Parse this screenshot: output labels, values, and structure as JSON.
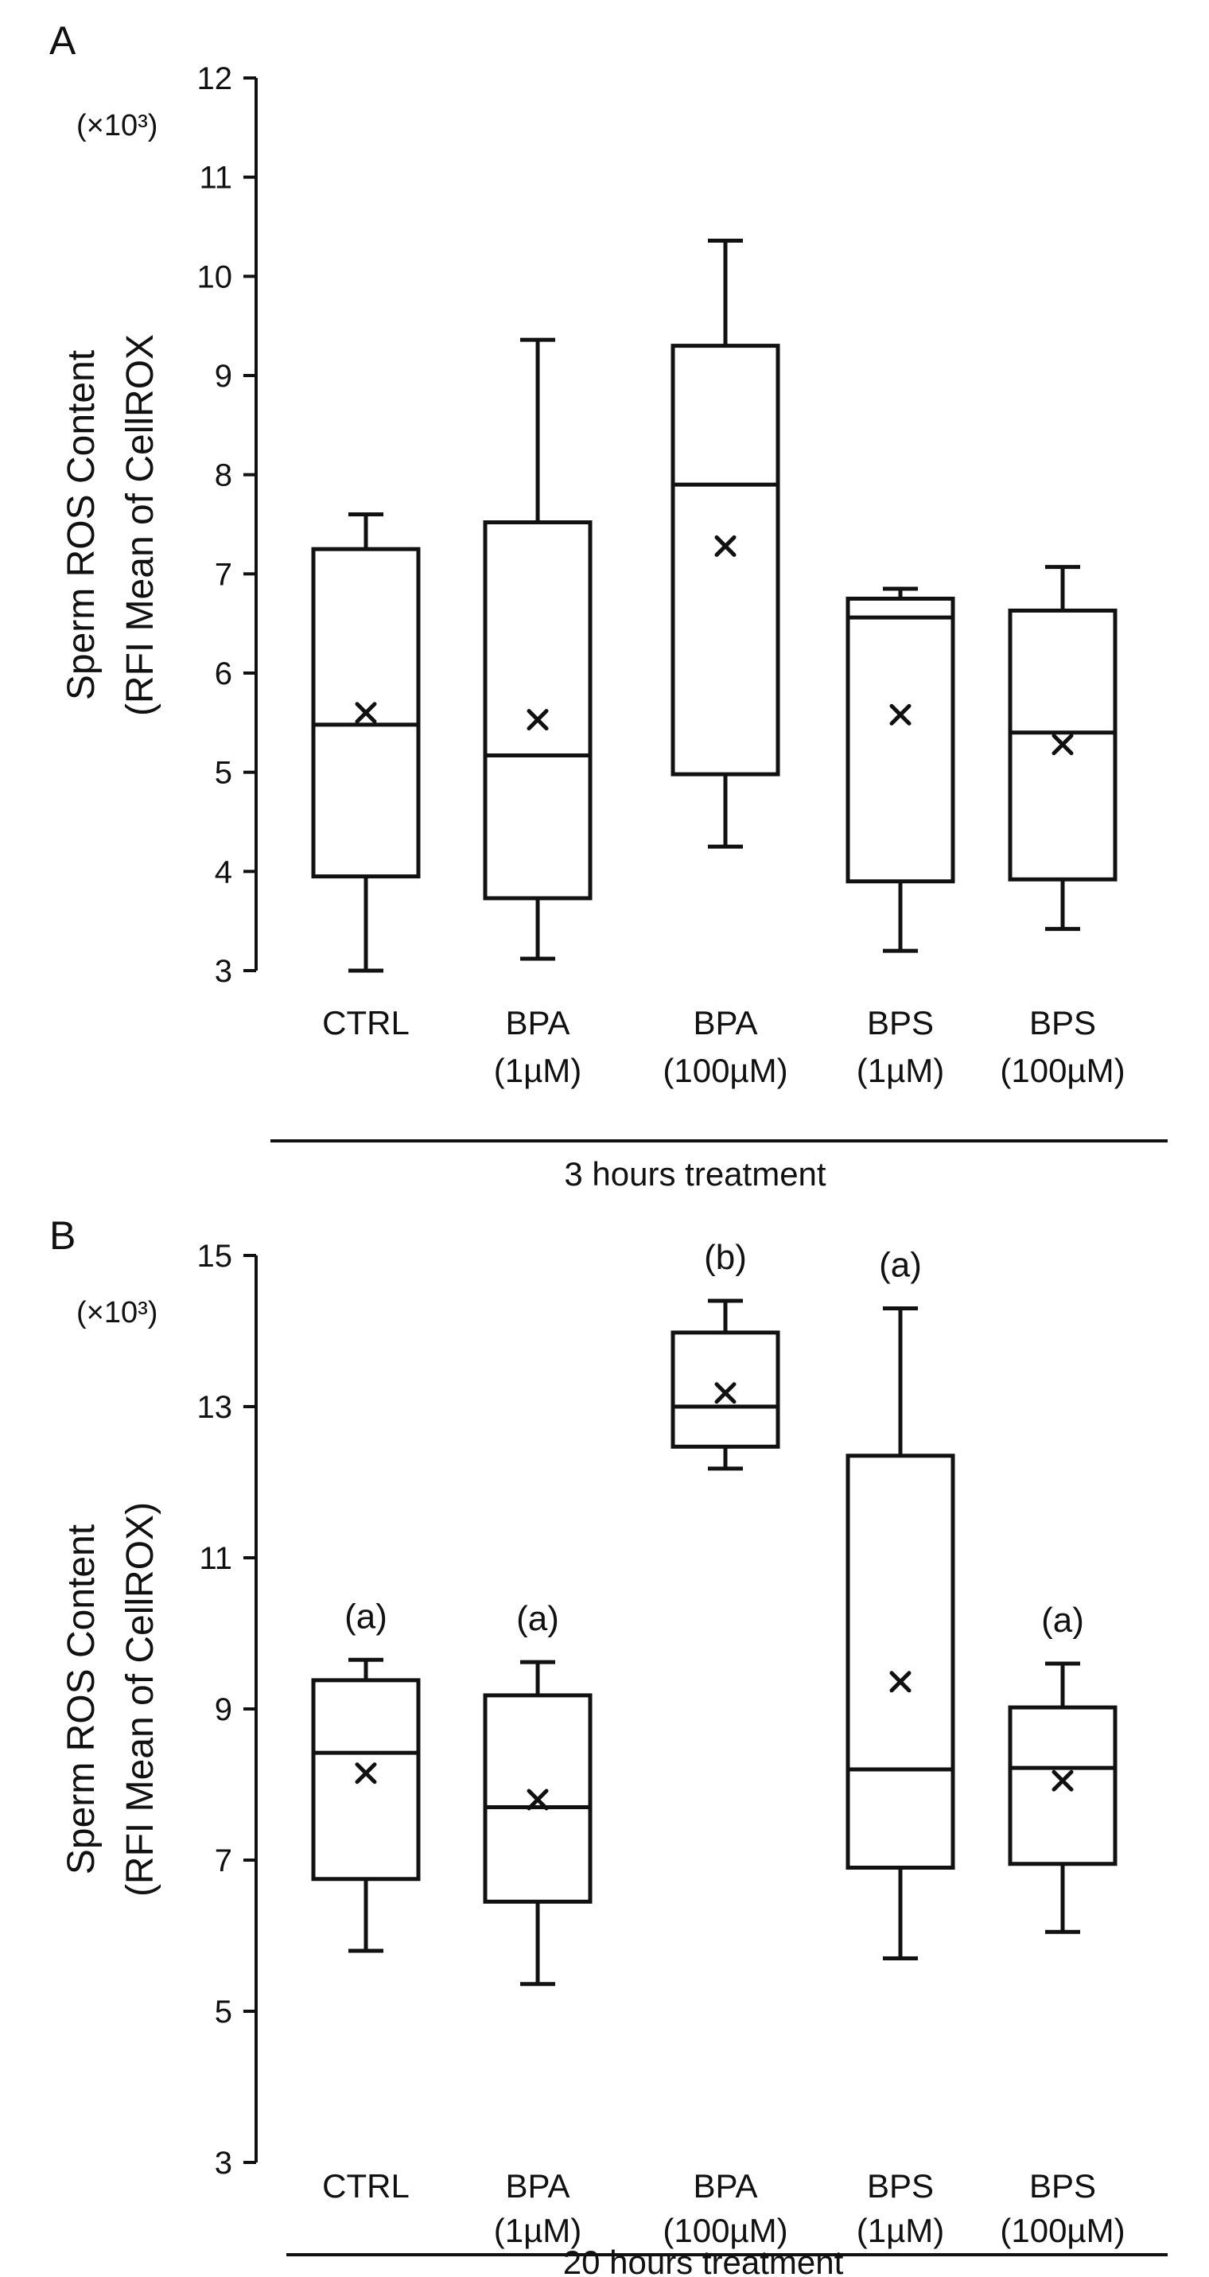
{
  "chart_data": [
    {
      "type": "box",
      "panel": "A",
      "ylabel_line1": "Sperm ROS Content",
      "ylabel_line2": "(RFI Mean of CellROX",
      "unit": "(×10³)",
      "ylim": [
        3,
        12
      ],
      "yticks": [
        3,
        4,
        5,
        6,
        7,
        8,
        9,
        10,
        11,
        12
      ],
      "categories": [
        {
          "line1": "CTRL",
          "line2": ""
        },
        {
          "line1": "BPA",
          "line2": "(1µM)"
        },
        {
          "line1": "BPA",
          "line2": "(100µM)"
        },
        {
          "line1": "BPS",
          "line2": "(1µM)"
        },
        {
          "line1": "BPS",
          "line2": "(100µM)"
        }
      ],
      "boxes": [
        {
          "min": 3.0,
          "q1": 3.95,
          "median": 5.48,
          "q3": 7.25,
          "max": 7.6,
          "mean": 5.6
        },
        {
          "min": 3.12,
          "q1": 3.73,
          "median": 5.17,
          "q3": 7.52,
          "max": 9.36,
          "mean": 5.53
        },
        {
          "min": 4.25,
          "q1": 4.98,
          "median": 7.9,
          "q3": 9.3,
          "max": 10.36,
          "mean": 7.28
        },
        {
          "min": 3.2,
          "q1": 3.9,
          "median": 6.56,
          "q3": 6.75,
          "max": 6.85,
          "mean": 5.58
        },
        {
          "min": 3.42,
          "q1": 3.92,
          "median": 5.4,
          "q3": 6.63,
          "max": 7.07,
          "mean": 5.28
        }
      ],
      "significance": [
        "",
        "",
        "",
        "",
        ""
      ],
      "treatment_label": "3 hours treatment"
    },
    {
      "type": "box",
      "panel": "B",
      "ylabel_line1": "Sperm ROS Content",
      "ylabel_line2": "(RFI Mean of CellROX)",
      "unit": "(×10³)",
      "ylim": [
        3,
        15
      ],
      "yticks": [
        3,
        5,
        7,
        9,
        11,
        13,
        15
      ],
      "categories": [
        {
          "line1": "CTRL",
          "line2": ""
        },
        {
          "line1": "BPA",
          "line2": "(1µM)"
        },
        {
          "line1": "BPA",
          "line2": "(100µM)"
        },
        {
          "line1": "BPS",
          "line2": "(1µM)"
        },
        {
          "line1": "BPS",
          "line2": "(100µM)"
        }
      ],
      "boxes": [
        {
          "min": 5.8,
          "q1": 6.75,
          "median": 8.42,
          "q3": 9.38,
          "max": 9.65,
          "mean": 8.15
        },
        {
          "min": 5.36,
          "q1": 6.45,
          "median": 7.7,
          "q3": 9.18,
          "max": 9.62,
          "mean": 7.8
        },
        {
          "min": 12.18,
          "q1": 12.47,
          "median": 13.0,
          "q3": 13.98,
          "max": 14.4,
          "mean": 13.18
        },
        {
          "min": 5.7,
          "q1": 6.9,
          "median": 8.2,
          "q3": 12.35,
          "max": 14.3,
          "mean": 9.36
        },
        {
          "min": 6.05,
          "q1": 6.95,
          "median": 8.22,
          "q3": 9.02,
          "max": 9.6,
          "mean": 8.05
        }
      ],
      "significance": [
        "(a)",
        "(a)",
        "(b)",
        "(a)",
        "(a)"
      ],
      "treatment_label": "20 hours treatment"
    }
  ]
}
